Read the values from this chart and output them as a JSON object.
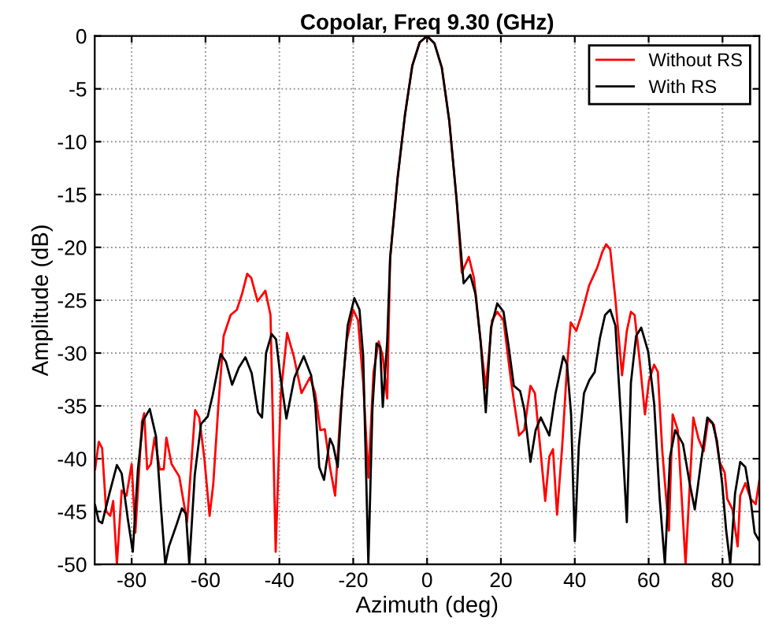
{
  "chart_data": {
    "type": "line",
    "title": "Copolar, Freq 9.30 (GHz)",
    "xlabel": "Azimuth (deg)",
    "ylabel": "Amplitude (dB)",
    "xlim": [
      -90,
      90
    ],
    "ylim": [
      -50,
      0
    ],
    "xticks": [
      -80,
      -60,
      -40,
      -20,
      0,
      20,
      40,
      60,
      80
    ],
    "yticks": [
      -50,
      -45,
      -40,
      -35,
      -30,
      -25,
      -20,
      -15,
      -10,
      -5,
      0
    ],
    "grid": true,
    "legend": "top right",
    "line_style": "solid",
    "marker": "none",
    "series": [
      {
        "name": "Without RS",
        "color": "#ff0000",
        "x": [
          -89.9,
          -88.9,
          -88,
          -86.9,
          -85.8,
          -85,
          -84,
          -82.7,
          -81.4,
          -80,
          -79,
          -77.2,
          -76.6,
          -75.8,
          -74.8,
          -73.8,
          -72.4,
          -71.3,
          -70.6,
          -69.2,
          -67.1,
          -65,
          -62.8,
          -61.7,
          -60.3,
          -58.9,
          -57.9,
          -56.5,
          -55.1,
          -53.2,
          -51.5,
          -50.1,
          -48.7,
          -47.6,
          -45.9,
          -43.8,
          -42.4,
          -41,
          -39.6,
          -37.9,
          -36.1,
          -34,
          -31.7,
          -30.3,
          -28.9,
          -27.7,
          -26.3,
          -24.9,
          -23.5,
          -21.8,
          -20,
          -18.7,
          -17.3,
          -15.9,
          -14.5,
          -13.1,
          -12,
          -10.8,
          -10,
          -8,
          -6,
          -4,
          -2,
          0,
          2,
          4,
          6,
          8,
          9.4,
          11.3,
          12.7,
          14.5,
          15.9,
          17.6,
          19,
          20.7,
          22.8,
          24.9,
          26.3,
          28,
          29.2,
          30.6,
          32,
          33.1,
          34.1,
          35.2,
          36.6,
          37.9,
          38.9,
          40.4,
          41.8,
          43.9,
          46.1,
          47.5,
          48.5,
          49.6,
          51,
          52.8,
          54.1,
          55.2,
          56.2,
          57.6,
          59,
          60.1,
          61.5,
          62.5,
          63.7,
          65.5,
          66.5,
          67.9,
          70,
          72.1,
          73.5,
          74.9,
          76.1,
          77.7,
          79.2,
          80.6,
          81.3,
          82.7,
          84.1,
          84.8,
          86.2,
          87.6,
          89,
          90
        ],
        "values": [
          -41,
          -38.4,
          -39,
          -45,
          -45.4,
          -44,
          -50,
          -43,
          -43.5,
          -40.5,
          -47,
          -36.5,
          -35.7,
          -41,
          -40.5,
          -38,
          -41,
          -41,
          -38,
          -40.5,
          -41.7,
          -46,
          -35.4,
          -36.1,
          -40,
          -45.4,
          -42.4,
          -34.9,
          -28.4,
          -26.4,
          -25.9,
          -24.4,
          -22.5,
          -22.9,
          -25.1,
          -24.1,
          -26.4,
          -48.8,
          -33.8,
          -28.1,
          -30.3,
          -33.8,
          -32.3,
          -33.8,
          -37.3,
          -37.2,
          -40.8,
          -43.5,
          -35.8,
          -28.9,
          -25.9,
          -26.9,
          -32.8,
          -41.8,
          -31.8,
          -28.9,
          -30.3,
          -34.3,
          -21,
          -13.5,
          -7.5,
          -2.8,
          -0.6,
          0,
          -0.7,
          -3,
          -8,
          -15.5,
          -22.4,
          -20.9,
          -22.9,
          -28.9,
          -33.3,
          -26.9,
          -26.1,
          -26.9,
          -32.8,
          -37.8,
          -37.3,
          -33.1,
          -33.8,
          -38.8,
          -44,
          -39.8,
          -39.1,
          -45.3,
          -38.8,
          -31.3,
          -27.1,
          -27.9,
          -26.4,
          -23.6,
          -21.9,
          -20.4,
          -19.7,
          -20.2,
          -24.9,
          -32.1,
          -27.9,
          -26.1,
          -26.4,
          -30.8,
          -35.8,
          -32.6,
          -31.1,
          -31.8,
          -39.3,
          -46.8,
          -35.8,
          -37.3,
          -50,
          -36.1,
          -38.1,
          -39.3,
          -36.3,
          -36.8,
          -40.3,
          -41.3,
          -43.8,
          -44.8,
          -48.3,
          -43.5,
          -42.3,
          -43.8,
          -44.3,
          -42
        ]
      },
      {
        "name": "With RS",
        "color": "#000000",
        "x": [
          -89.9,
          -88.9,
          -88,
          -86.1,
          -84,
          -82.7,
          -81,
          -79.7,
          -78.3,
          -76.9,
          -75.1,
          -73.4,
          -72,
          -70.9,
          -69.9,
          -67.8,
          -66.4,
          -65.3,
          -64.4,
          -62.9,
          -61.2,
          -59.4,
          -58,
          -55.9,
          -54.5,
          -52.8,
          -51,
          -49.2,
          -47.5,
          -45.8,
          -44.7,
          -43.6,
          -42.1,
          -40.9,
          -39.8,
          -38.1,
          -35.9,
          -33.4,
          -31.4,
          -30.3,
          -29.2,
          -27.9,
          -26.3,
          -25.4,
          -24.2,
          -23,
          -21.5,
          -19.7,
          -18.3,
          -17.3,
          -15.9,
          -14.8,
          -13.7,
          -12.7,
          -12,
          -10.8,
          -10,
          -8,
          -6,
          -4,
          -2,
          0,
          2,
          4,
          6,
          8,
          9.9,
          11.7,
          13.1,
          14.5,
          15.9,
          17.3,
          19,
          20.7,
          22.1,
          23.5,
          25.2,
          26.3,
          28,
          29.4,
          30.8,
          33.1,
          34.8,
          36.9,
          37.9,
          39,
          40,
          41.1,
          42.5,
          43.9,
          45.4,
          46.8,
          48.2,
          49.6,
          51,
          52.8,
          54.1,
          55.2,
          56.6,
          58,
          59.9,
          61.5,
          63,
          64.4,
          65.8,
          67.2,
          69.3,
          71.1,
          72.5,
          74.2,
          75.9,
          77.3,
          78.5,
          79.9,
          81,
          82.1,
          83.4,
          84.8,
          86.2,
          87.6,
          88.7,
          90
        ],
        "values": [
          -44.4,
          -45.9,
          -46.1,
          -43.4,
          -40.6,
          -41.4,
          -45.8,
          -48.8,
          -41,
          -36.4,
          -35.3,
          -37.9,
          -44.9,
          -50,
          -48.3,
          -46.2,
          -44.7,
          -45.2,
          -50,
          -41.5,
          -36.7,
          -36,
          -33.9,
          -30.1,
          -30.8,
          -33,
          -31.4,
          -30.4,
          -31.9,
          -35.6,
          -36.1,
          -30,
          -28.2,
          -28.7,
          -32,
          -36.2,
          -32.3,
          -30.3,
          -32.1,
          -34.8,
          -40.8,
          -42,
          -38.1,
          -38.8,
          -40.8,
          -33.8,
          -27.4,
          -24.8,
          -25.9,
          -30.3,
          -50,
          -35.3,
          -29.1,
          -29.4,
          -35.1,
          -28.9,
          -21,
          -13.5,
          -7.5,
          -2.8,
          -0.6,
          0,
          -0.7,
          -3,
          -8,
          -15.5,
          -23.4,
          -22.6,
          -24.4,
          -28.9,
          -35.6,
          -27.6,
          -25.3,
          -26.1,
          -29.4,
          -33.1,
          -33.6,
          -35.3,
          -40.3,
          -37.3,
          -36.1,
          -37.8,
          -33.8,
          -30.3,
          -31.1,
          -35.8,
          -47.8,
          -38.8,
          -33.8,
          -32.6,
          -31.8,
          -28.6,
          -26.4,
          -25.9,
          -27.4,
          -37.8,
          -46,
          -32.8,
          -28.4,
          -27.6,
          -29.9,
          -34.8,
          -43.8,
          -50,
          -39.8,
          -37.3,
          -38.6,
          -42.3,
          -44.8,
          -40.3,
          -36.1,
          -36.6,
          -38.3,
          -42.3,
          -46.8,
          -50,
          -43.3,
          -40.3,
          -40.8,
          -43.8,
          -47,
          -47.8
        ]
      }
    ]
  }
}
